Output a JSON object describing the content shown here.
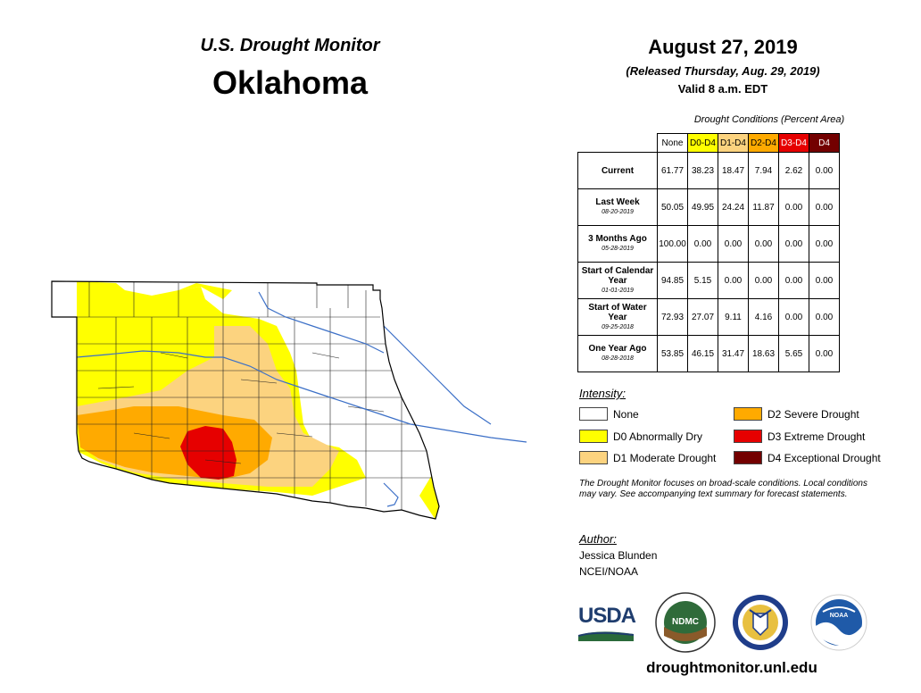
{
  "header": {
    "subtitle": "U.S. Drought Monitor",
    "state": "Oklahoma",
    "date": "August 27, 2019",
    "released": "(Released Thursday, Aug. 29, 2019)",
    "valid": "Valid 8 a.m. EDT"
  },
  "table": {
    "caption": "Drought Conditions (Percent Area)",
    "columns": [
      "None",
      "D0-D4",
      "D1-D4",
      "D2-D4",
      "D3-D4",
      "D4"
    ],
    "column_colors": [
      "#ffffff",
      "#ffff00",
      "#fcd37f",
      "#ffaa00",
      "#e60000",
      "#730000"
    ],
    "rows": [
      {
        "label": "Current",
        "date": "",
        "values": [
          "61.77",
          "38.23",
          "18.47",
          "7.94",
          "2.62",
          "0.00"
        ]
      },
      {
        "label": "Last Week",
        "date": "08-20-2019",
        "values": [
          "50.05",
          "49.95",
          "24.24",
          "11.87",
          "0.00",
          "0.00"
        ]
      },
      {
        "label": "3 Months Ago",
        "date": "05-28-2019",
        "values": [
          "100.00",
          "0.00",
          "0.00",
          "0.00",
          "0.00",
          "0.00"
        ]
      },
      {
        "label": "Start of Calendar Year",
        "date": "01-01-2019",
        "values": [
          "94.85",
          "5.15",
          "0.00",
          "0.00",
          "0.00",
          "0.00"
        ]
      },
      {
        "label": "Start of Water Year",
        "date": "09-25-2018",
        "values": [
          "72.93",
          "27.07",
          "9.11",
          "4.16",
          "0.00",
          "0.00"
        ]
      },
      {
        "label": "One Year Ago",
        "date": "08-28-2018",
        "values": [
          "53.85",
          "46.15",
          "31.47",
          "18.63",
          "5.65",
          "0.00"
        ]
      }
    ]
  },
  "legend": {
    "title": "Intensity:",
    "items": [
      {
        "label": "None",
        "color": "#ffffff"
      },
      {
        "label": "D0 Abnormally Dry",
        "color": "#ffff00"
      },
      {
        "label": "D1 Moderate Drought",
        "color": "#fcd37f"
      },
      {
        "label": "D2 Severe Drought",
        "color": "#ffaa00"
      },
      {
        "label": "D3 Extreme Drought",
        "color": "#e60000"
      },
      {
        "label": "D4 Exceptional Drought",
        "color": "#730000"
      }
    ]
  },
  "note": "The Drought Monitor focuses on broad-scale conditions. Local conditions may vary. See accompanying text summary for forecast statements.",
  "author": {
    "title": "Author:",
    "name": "Jessica Blunden",
    "org": "NCEI/NOAA"
  },
  "logos": {
    "usda": "USDA",
    "ndmc": "NDMC",
    "noaa": "NOAA"
  },
  "site": "droughtmonitor.unl.edu"
}
